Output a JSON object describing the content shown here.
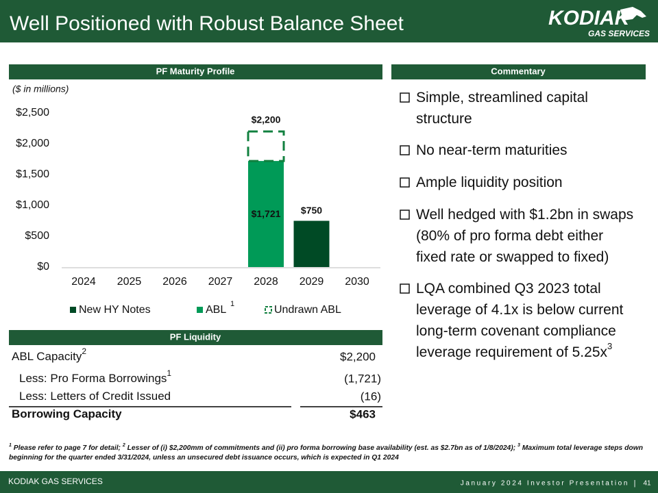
{
  "header": {
    "title": "Well Positioned with Robust Balance Sheet",
    "logo_line1": "KODIAK",
    "logo_line2": "GAS SERVICES"
  },
  "chart_data": {
    "type": "bar",
    "title": "PF Maturity Profile",
    "subtitle": "($ in millions)",
    "categories": [
      "2024",
      "2025",
      "2026",
      "2027",
      "2028",
      "2029",
      "2030"
    ],
    "series": [
      {
        "name": "New HY Notes",
        "color": "#004a25",
        "values": [
          null,
          null,
          null,
          null,
          null,
          750,
          null
        ],
        "value_labels": [
          null,
          null,
          null,
          null,
          null,
          "$750",
          null
        ]
      },
      {
        "name": "ABL",
        "note": "1",
        "color": "#009a57",
        "values": [
          null,
          null,
          null,
          null,
          1721,
          null,
          null
        ],
        "value_labels": [
          null,
          null,
          null,
          null,
          "$1,721",
          null,
          null
        ]
      },
      {
        "name": "Undrawn ABL",
        "color": "#11803f",
        "dashed": true,
        "values": [
          null,
          null,
          null,
          null,
          479,
          null,
          null
        ]
      }
    ],
    "totals": {
      "values": [
        null,
        null,
        null,
        null,
        2200,
        null,
        null
      ],
      "value_labels": [
        null,
        null,
        null,
        null,
        "$2,200",
        null,
        null
      ]
    },
    "ylim": [
      0,
      2500
    ],
    "yticks": [
      {
        "value": 0,
        "label": "$0"
      },
      {
        "value": 500,
        "label": "$500"
      },
      {
        "value": 1000,
        "label": "$1,000"
      },
      {
        "value": 1500,
        "label": "$1,500"
      },
      {
        "value": 2000,
        "label": "$2,000"
      },
      {
        "value": 2500,
        "label": "$2,500"
      }
    ],
    "grid": false,
    "legend": "bottom"
  },
  "commentary": {
    "title": "Commentary",
    "bullets": [
      {
        "lines": [
          "Simple, streamlined capital",
          "structure"
        ]
      },
      {
        "lines": [
          "No near-term maturities"
        ]
      },
      {
        "lines": [
          "Ample liquidity position"
        ]
      },
      {
        "lines": [
          "Well hedged with $1.2bn in swaps",
          "(80% of pro forma debt either",
          "fixed rate or swapped to fixed)"
        ]
      },
      {
        "lines": [
          "LQA combined Q3 2023 total",
          "leverage of 4.1x is below current",
          "long-term covenant compliance",
          "leverage requirement of 5.25x"
        ],
        "sup": "3"
      }
    ]
  },
  "liquidity": {
    "title": "PF Liquidity",
    "rows": [
      {
        "label": "ABL Capacity",
        "sup": "2",
        "value": "$2,200"
      },
      {
        "label": "Less: Pro Forma Borrowings",
        "sup": "1",
        "value": "(1,721)"
      },
      {
        "label": "Less: Letters of Credit Issued",
        "value": "(16)"
      },
      {
        "label": "Borrowing Capacity",
        "value": "$463"
      }
    ]
  },
  "footnotes": [
    {
      "sup": "1",
      "text": " Please refer to page 7 for detail; "
    },
    {
      "sup": "2",
      "text": " Lesser of (i) $2,200mm of commitments and (ii) pro forma borrowing base availability (est. as $2.7bn as of 1/8/2024); "
    },
    {
      "sup": "3",
      "text": " Maximum total leverage steps down"
    },
    {
      "text": "beginning for the quarter ended 3/31/2024, unless an unsecured debt issuance occurs, which is expected in Q1 2024"
    }
  ],
  "footer": {
    "company": "KODIAK GAS SERVICES",
    "presentation": "January 2024 Investor Presentation",
    "page": "41"
  }
}
